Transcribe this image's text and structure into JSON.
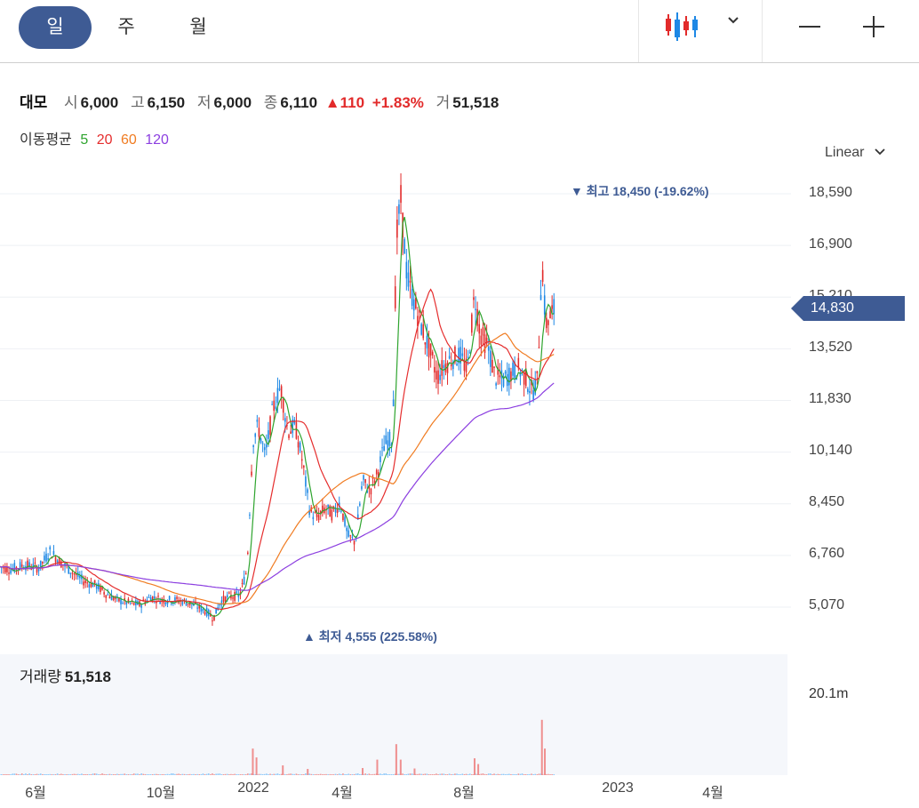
{
  "tabs": [
    {
      "label": "일",
      "active": true
    },
    {
      "label": "주",
      "active": false
    },
    {
      "label": "월",
      "active": false
    }
  ],
  "toolbar": {
    "chart_type_icon": "candlestick-icon",
    "dropdown_icon": "chevron-down-icon",
    "zoom_out_icon": "minus-icon",
    "zoom_in_icon": "plus-icon"
  },
  "info": {
    "name": "대모",
    "open_label": "시",
    "open": "6,000",
    "high_label": "고",
    "high": "6,150",
    "low_label": "저",
    "low": "6,000",
    "close_label": "종",
    "close": "6,110",
    "change": "110",
    "change_pct": "+1.83%",
    "volume_label": "거",
    "volume": "51,518"
  },
  "ma_legend": {
    "label": "이동평균",
    "periods": [
      {
        "label": "5",
        "color": "#2ea42e"
      },
      {
        "label": "20",
        "color": "#e52d2d"
      },
      {
        "label": "60",
        "color": "#f07c22"
      },
      {
        "label": "120",
        "color": "#8c3fe0"
      }
    ]
  },
  "scale": {
    "label": "Linear"
  },
  "colors": {
    "up": "#e22b2b",
    "down": "#1e88e5",
    "accent": "#3e5b94"
  },
  "chart_data": {
    "type": "candlestick",
    "title": "",
    "y_ticks": [
      "18,590",
      "16,900",
      "15,210",
      "13,520",
      "11,830",
      "10,140",
      "8,450",
      "6,760",
      "5,070"
    ],
    "ylim": [
      5070,
      18590
    ],
    "x_ticks": [
      "6월",
      "10월",
      "2022",
      "4월",
      "8월",
      "2023",
      "4월"
    ],
    "last_price": "14,830",
    "annotations": {
      "high": "▼ 최고 18,450 (-19.62%)",
      "low": "▲ 최저 4,555 (225.58%)"
    },
    "price_path": [
      [
        "2021-05-17",
        6400
      ],
      [
        "2021-06-01",
        6300
      ],
      [
        "2021-06-20",
        6450
      ],
      [
        "2021-07-10",
        6350
      ],
      [
        "2021-07-25",
        6900
      ],
      [
        "2021-08-10",
        6500
      ],
      [
        "2021-08-25",
        6200
      ],
      [
        "2021-09-10",
        5900
      ],
      [
        "2021-09-25",
        5800
      ],
      [
        "2021-10-10",
        5500
      ],
      [
        "2021-10-25",
        5300
      ],
      [
        "2021-11-10",
        5200
      ],
      [
        "2021-11-25",
        5150
      ],
      [
        "2021-12-10",
        5400
      ],
      [
        "2021-12-25",
        5300
      ],
      [
        "2022-01-10",
        5300
      ],
      [
        "2022-01-25",
        5250
      ],
      [
        "2022-02-10",
        5100
      ],
      [
        "2022-02-25",
        4900
      ],
      [
        "2022-03-05",
        4700
      ],
      [
        "2022-03-15",
        5250
      ],
      [
        "2022-03-25",
        5400
      ],
      [
        "2022-04-10",
        5450
      ],
      [
        "2022-04-20",
        6300
      ],
      [
        "2022-04-28",
        10500
      ],
      [
        "2022-05-05",
        11000
      ],
      [
        "2022-05-15",
        10000
      ],
      [
        "2022-05-25",
        11500
      ],
      [
        "2022-06-05",
        12300
      ],
      [
        "2022-06-15",
        10800
      ],
      [
        "2022-06-25",
        11000
      ],
      [
        "2022-07-05",
        9800
      ],
      [
        "2022-07-15",
        8200
      ],
      [
        "2022-07-25",
        8000
      ],
      [
        "2022-08-05",
        8300
      ],
      [
        "2022-08-15",
        8100
      ],
      [
        "2022-08-25",
        8500
      ],
      [
        "2022-09-05",
        7400
      ],
      [
        "2022-09-15",
        7200
      ],
      [
        "2022-09-25",
        9200
      ],
      [
        "2022-10-05",
        8900
      ],
      [
        "2022-10-15",
        9400
      ],
      [
        "2022-10-25",
        10400
      ],
      [
        "2022-11-05",
        10600
      ],
      [
        "2022-11-10",
        17000
      ],
      [
        "2022-11-16",
        18450
      ],
      [
        "2022-11-25",
        15800
      ],
      [
        "2022-12-05",
        15000
      ],
      [
        "2022-12-15",
        14200
      ],
      [
        "2022-12-25",
        13500
      ],
      [
        "2023-01-05",
        12600
      ],
      [
        "2023-01-15",
        13000
      ],
      [
        "2023-01-25",
        13200
      ],
      [
        "2023-02-05",
        13300
      ],
      [
        "2023-02-15",
        12800
      ],
      [
        "2023-02-25",
        15300
      ],
      [
        "2023-03-05",
        14000
      ],
      [
        "2023-03-15",
        13600
      ],
      [
        "2023-03-25",
        12600
      ],
      [
        "2023-04-05",
        12500
      ],
      [
        "2023-04-15",
        12700
      ],
      [
        "2023-04-25",
        12900
      ],
      [
        "2023-05-05",
        12600
      ],
      [
        "2023-05-15",
        12100
      ],
      [
        "2023-05-22",
        12500
      ],
      [
        "2023-05-28",
        16500
      ],
      [
        "2023-06-02",
        14300
      ],
      [
        "2023-06-09",
        14600
      ],
      [
        "2023-06-15",
        14830
      ]
    ],
    "ma_series": [
      {
        "name": "5",
        "color": "#2ea42e"
      },
      {
        "name": "20",
        "color": "#e52d2d"
      },
      {
        "name": "60",
        "color": "#f07c22"
      },
      {
        "name": "120",
        "color": "#8c3fe0"
      }
    ],
    "volume": {
      "label": "거래량",
      "last": "51,518",
      "max_label": "20.1m",
      "spikes": [
        [
          "2022-04-28",
          6.0
        ],
        [
          "2022-05-03",
          4.0
        ],
        [
          "2022-06-08",
          2.2
        ],
        [
          "2022-07-12",
          1.4
        ],
        [
          "2022-09-25",
          1.6
        ],
        [
          "2022-10-15",
          3.5
        ],
        [
          "2022-11-10",
          7.0
        ],
        [
          "2022-11-16",
          3.5
        ],
        [
          "2022-12-05",
          1.5
        ],
        [
          "2023-02-25",
          3.8
        ],
        [
          "2023-03-02",
          2.5
        ],
        [
          "2023-05-28",
          12.5
        ],
        [
          "2023-06-01",
          6.0
        ]
      ]
    }
  }
}
